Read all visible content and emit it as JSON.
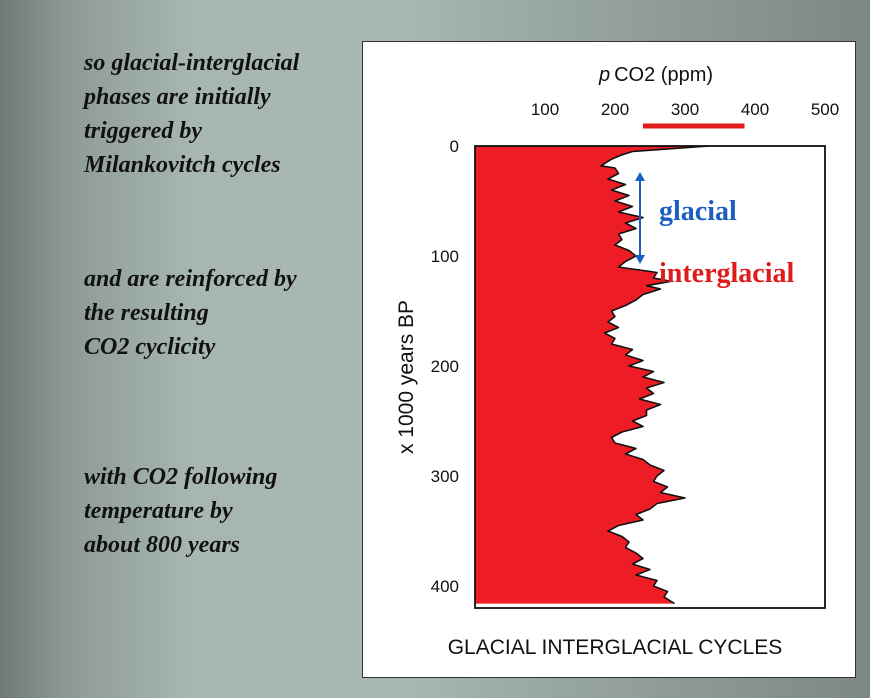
{
  "notes": [
    {
      "lines": [
        "so glacial-interglacial",
        "phases are initially",
        "triggered by",
        "Milankovitch cycles"
      ]
    },
    {
      "lines": [
        "and are reinforced by",
        "the resulting",
        "CO2 cyclicity"
      ]
    },
    {
      "lines": [
        "with CO2 following",
        "temperature by",
        "about 800 years"
      ]
    }
  ],
  "annotations": {
    "glacial": "glacial",
    "interglacial": "interglacial",
    "glacial_color": "#1c5fc0",
    "interglacial_color": "#e01b1b"
  },
  "chart_data": {
    "type": "area",
    "title": "GLACIAL INTERGLACIAL CYCLES",
    "xlabel_prefix": "p",
    "xlabel": "CO2 (ppm)",
    "ylabel": "x 1000 years BP",
    "xlim": [
      0,
      500
    ],
    "ylim": [
      0,
      420
    ],
    "x_ticks": [
      "100",
      "200",
      "300",
      "400",
      "500"
    ],
    "y_ticks": [
      "0",
      "100",
      "200",
      "300",
      "400"
    ],
    "fill_color": "#ee1c24",
    "modern_range_ppm": [
      240,
      385
    ],
    "series": [
      {
        "points": [
          [
            0,
            335
          ],
          [
            5,
            225
          ],
          [
            8,
            210
          ],
          [
            12,
            195
          ],
          [
            18,
            180
          ],
          [
            20,
            200
          ],
          [
            25,
            205
          ],
          [
            30,
            190
          ],
          [
            35,
            215
          ],
          [
            40,
            195
          ],
          [
            45,
            220
          ],
          [
            50,
            200
          ],
          [
            55,
            225
          ],
          [
            60,
            205
          ],
          [
            65,
            240
          ],
          [
            70,
            215
          ],
          [
            75,
            230
          ],
          [
            80,
            205
          ],
          [
            85,
            210
          ],
          [
            90,
            200
          ],
          [
            95,
            220
          ],
          [
            100,
            230
          ],
          [
            105,
            215
          ],
          [
            110,
            205
          ],
          [
            115,
            260
          ],
          [
            120,
            255
          ],
          [
            123,
            280
          ],
          [
            127,
            245
          ],
          [
            130,
            265
          ],
          [
            135,
            240
          ],
          [
            140,
            230
          ],
          [
            145,
            215
          ],
          [
            150,
            195
          ],
          [
            155,
            200
          ],
          [
            160,
            190
          ],
          [
            165,
            205
          ],
          [
            170,
            185
          ],
          [
            175,
            200
          ],
          [
            180,
            195
          ],
          [
            185,
            225
          ],
          [
            190,
            215
          ],
          [
            195,
            240
          ],
          [
            200,
            220
          ],
          [
            205,
            255
          ],
          [
            210,
            240
          ],
          [
            215,
            270
          ],
          [
            220,
            245
          ],
          [
            225,
            255
          ],
          [
            230,
            235
          ],
          [
            235,
            265
          ],
          [
            240,
            245
          ],
          [
            245,
            245
          ],
          [
            250,
            225
          ],
          [
            255,
            240
          ],
          [
            260,
            210
          ],
          [
            265,
            195
          ],
          [
            270,
            200
          ],
          [
            275,
            230
          ],
          [
            280,
            215
          ],
          [
            285,
            240
          ],
          [
            290,
            250
          ],
          [
            295,
            270
          ],
          [
            300,
            260
          ],
          [
            305,
            255
          ],
          [
            310,
            275
          ],
          [
            315,
            265
          ],
          [
            320,
            300
          ],
          [
            325,
            260
          ],
          [
            330,
            250
          ],
          [
            335,
            230
          ],
          [
            340,
            240
          ],
          [
            345,
            205
          ],
          [
            350,
            190
          ],
          [
            355,
            210
          ],
          [
            360,
            220
          ],
          [
            365,
            215
          ],
          [
            370,
            230
          ],
          [
            375,
            240
          ],
          [
            380,
            225
          ],
          [
            385,
            250
          ],
          [
            390,
            230
          ],
          [
            395,
            260
          ],
          [
            400,
            255
          ],
          [
            405,
            275
          ],
          [
            410,
            270
          ],
          [
            416,
            285
          ]
        ]
      }
    ]
  }
}
